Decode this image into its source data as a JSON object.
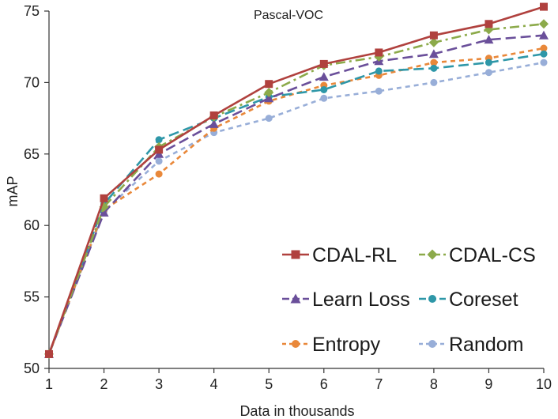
{
  "chart_data": {
    "type": "line",
    "title": "Pascal-VOC",
    "xlabel": "Data in thousands",
    "ylabel": "mAP",
    "x": [
      1,
      2,
      3,
      4,
      5,
      6,
      7,
      8,
      9,
      10
    ],
    "xlim": [
      1,
      10
    ],
    "ylim": [
      50,
      75
    ],
    "yticks": [
      50,
      55,
      60,
      65,
      70,
      75
    ],
    "legend_position": "lower-right",
    "series": [
      {
        "name": "CDAL-RL",
        "color": "#B0413E",
        "marker": "square",
        "dash": "solid",
        "values": [
          51.0,
          61.9,
          65.3,
          67.7,
          69.9,
          71.3,
          72.1,
          73.3,
          74.1,
          75.3
        ]
      },
      {
        "name": "CDAL-CS",
        "color": "#8CAA4A",
        "marker": "diamond",
        "dash": "dashdot",
        "values": [
          51.0,
          61.3,
          65.5,
          67.6,
          69.3,
          71.2,
          71.8,
          72.8,
          73.7,
          74.1
        ]
      },
      {
        "name": "Learn Loss",
        "color": "#6A4F9A",
        "marker": "triangle",
        "dash": "longdash",
        "values": [
          51.0,
          60.9,
          65.0,
          67.1,
          68.9,
          70.4,
          71.5,
          72.0,
          73.0,
          73.3
        ]
      },
      {
        "name": "Coreset",
        "color": "#2E97A8",
        "marker": "circle",
        "dash": "longdash",
        "values": [
          51.0,
          61.5,
          66.0,
          67.5,
          69.0,
          69.5,
          70.8,
          71.0,
          71.4,
          72.0
        ]
      },
      {
        "name": "Entropy",
        "color": "#E9883A",
        "marker": "circle",
        "dash": "dash",
        "values": [
          51.0,
          61.1,
          63.6,
          66.8,
          68.7,
          69.8,
          70.5,
          71.4,
          71.7,
          72.4
        ]
      },
      {
        "name": "Random",
        "color": "#98AED8",
        "marker": "circle",
        "dash": "dash",
        "values": [
          51.0,
          61.0,
          64.5,
          66.5,
          67.5,
          68.9,
          69.4,
          70.0,
          70.7,
          71.4
        ]
      }
    ]
  }
}
